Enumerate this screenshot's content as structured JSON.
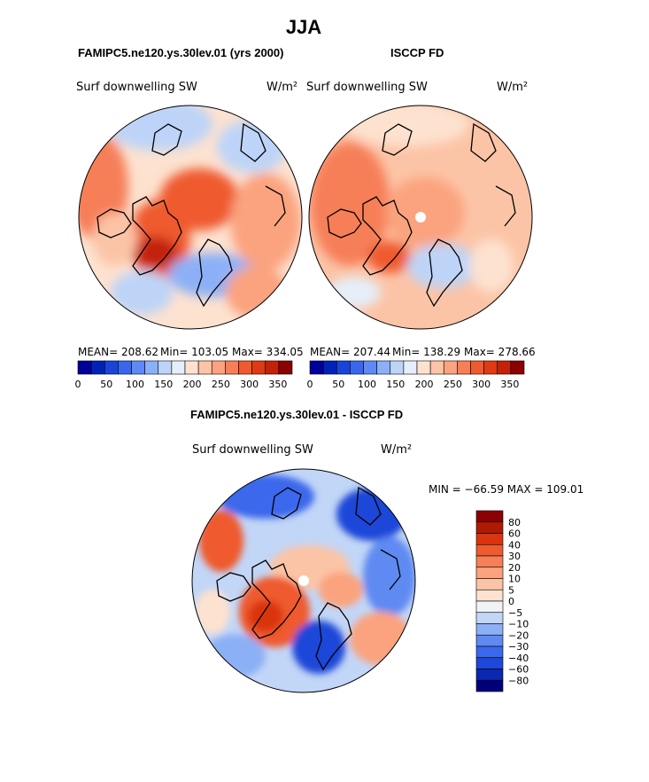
{
  "page": {
    "season": "JJA",
    "model_title": "FAMIPC5.ne120.ys.30lev.01 (yrs 2000)",
    "obs_title": "ISCCP FD",
    "diff_title": "FAMIPC5.ne120.ys.30lev.01 - ISCCP FD"
  },
  "colors": {
    "abs_palette": [
      "#00009a",
      "#0022b8",
      "#1a44d6",
      "#3a66ee",
      "#5f8af5",
      "#8cb0f7",
      "#bdd4f8",
      "#e6eef9",
      "#fde2d0",
      "#fcc4a6",
      "#fba37e",
      "#f67f58",
      "#ef5a2f",
      "#e03a14",
      "#c22308",
      "#8b0000"
    ],
    "diff_palette": [
      "#00007a",
      "#0a28b0",
      "#1f47d8",
      "#3a68ec",
      "#5f8af2",
      "#8cb0f5",
      "#c2d6f7",
      "#f0f2f5",
      "#fde2d0",
      "#fcc4a6",
      "#fba37e",
      "#f67f58",
      "#ef5a2f",
      "#d93510",
      "#b01a05",
      "#8b0000"
    ]
  },
  "chart_data": [
    {
      "type": "heatmap",
      "projection": "north-polar-stereographic",
      "title": "FAMIPC5.ne120.ys.30lev.01 (yrs 2000)",
      "variable": "Surf downwelling SW",
      "units": "W/m²",
      "stats": {
        "mean": "MEAN= 208.62",
        "min": "Min= 103.05",
        "max": "Max= 334.05"
      },
      "colorbar_ticks": [
        "0",
        "50",
        "100",
        "150",
        "200",
        "250",
        "300",
        "350"
      ],
      "colorbar_levels": 16,
      "vmin": 0,
      "vmax": 375
    },
    {
      "type": "heatmap",
      "projection": "north-polar-stereographic",
      "title": "ISCCP FD",
      "variable": "Surf downwelling SW",
      "units": "W/m²",
      "stats": {
        "mean": "MEAN= 207.44",
        "min": "Min= 138.29",
        "max": "Max= 278.66"
      },
      "colorbar_ticks": [
        "0",
        "50",
        "100",
        "150",
        "200",
        "250",
        "300",
        "350"
      ],
      "colorbar_levels": 16,
      "vmin": 0,
      "vmax": 375
    },
    {
      "type": "heatmap",
      "projection": "north-polar-stereographic",
      "title": "FAMIPC5.ne120.ys.30lev.01 - ISCCP FD",
      "variable": "Surf downwelling SW",
      "units": "W/m²",
      "stats_text": "MIN = −66.59 MAX = 109.01",
      "colorbar_labels": [
        "80",
        "60",
        "40",
        "30",
        "20",
        "10",
        "5",
        "0",
        "−5",
        "−10",
        "−20",
        "−30",
        "−40",
        "−60",
        "−80"
      ]
    }
  ]
}
